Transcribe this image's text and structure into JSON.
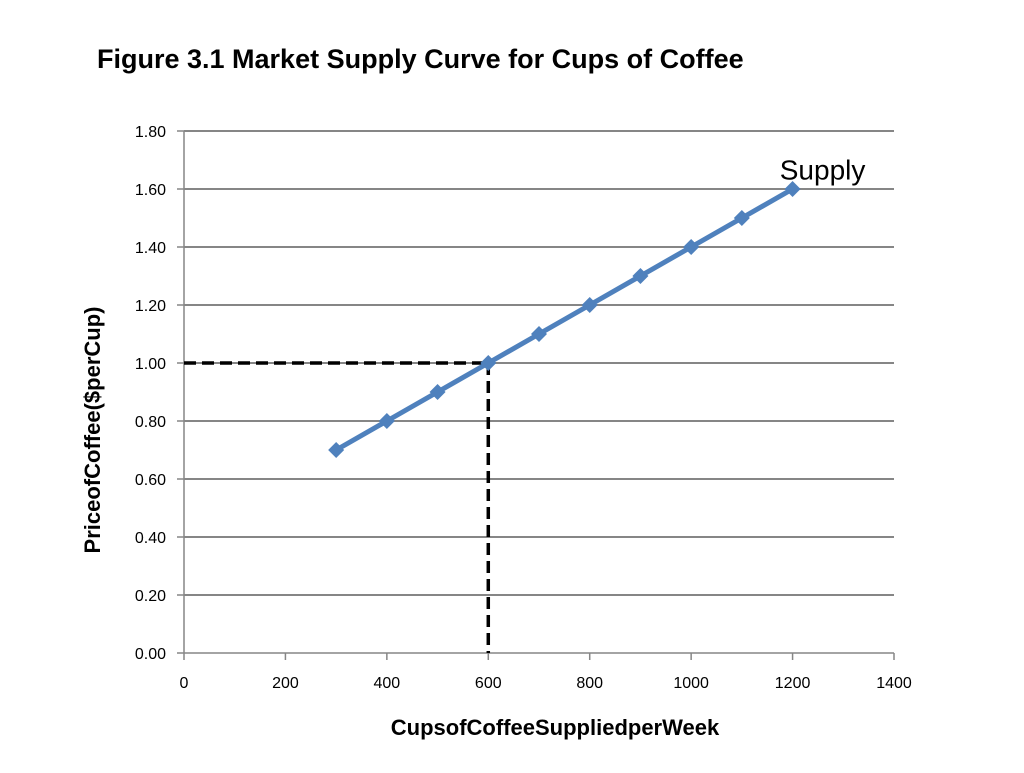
{
  "chart_data": {
    "type": "line",
    "title": "Figure 3.1  Market Supply Curve for Cups of Coffee",
    "xlabel": "Cups\u0003of\u0003Coffee\u0003Supplied\u0003per\u0003Week",
    "ylabel": "Price\u0003of\u0003Coffee\u0003($\u0003per\u0003Cup)",
    "xlim": [
      0,
      1400
    ],
    "ylim": [
      0,
      1.8
    ],
    "x_ticks": [
      "0",
      "200",
      "400",
      "600",
      "800",
      "1000",
      "1200",
      "1400"
    ],
    "y_ticks": [
      "0.00",
      "0.20",
      "0.40",
      "0.60",
      "0.80",
      "1.00",
      "1.20",
      "1.40",
      "1.60",
      "1.80"
    ],
    "grid": "horizontal",
    "series": [
      {
        "name": "Supply",
        "x": [
          300,
          400,
          500,
          600,
          700,
          800,
          900,
          1000,
          1100,
          1200
        ],
        "y": [
          0.7,
          0.8,
          0.9,
          1.0,
          1.1,
          1.2,
          1.3,
          1.4,
          1.5,
          1.6
        ],
        "marker": "diamond"
      }
    ],
    "annotations": [
      {
        "text": "Supply",
        "x": 1200,
        "y": 1.65
      }
    ],
    "reference_point": {
      "x": 600,
      "y": 1.0,
      "style": "dashed"
    }
  },
  "colors": {
    "series": "#4f81bd",
    "grid": "#868686",
    "axis": "#868686",
    "reference": "#000000"
  }
}
